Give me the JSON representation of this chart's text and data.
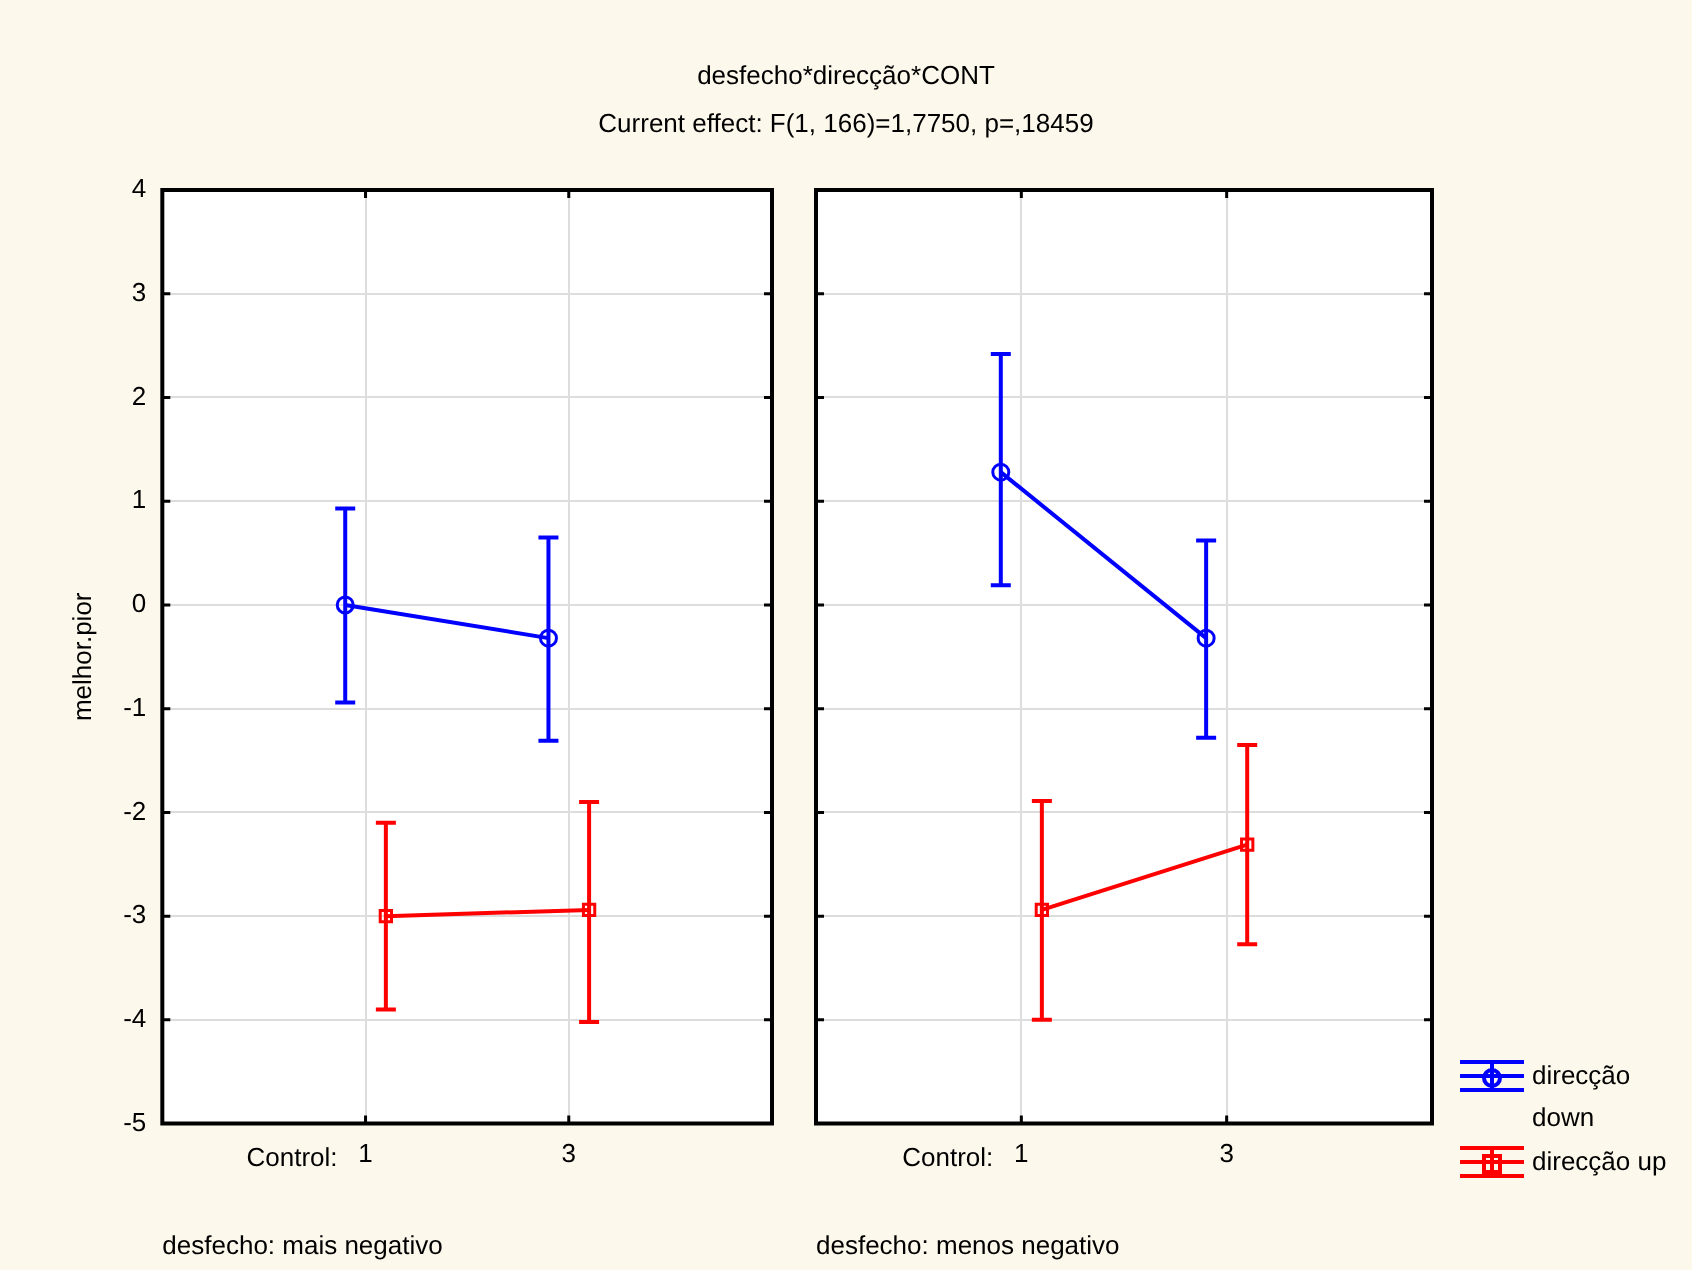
{
  "chart_data": [
    {
      "type": "line",
      "title": "desfecho*direcção*CONT",
      "subtitle": "Current effect: F(1, 166)=1,7750, p=,18459",
      "xlabel": "desfecho: mais negativo",
      "ylabel": "melhor.pior",
      "annotations": [
        "Control:"
      ],
      "categories": [
        "1",
        "3"
      ],
      "ylim": [
        -5,
        4
      ],
      "yticks": [
        -5,
        -4,
        -3,
        -2,
        -1,
        0,
        1,
        2,
        3,
        4
      ],
      "grid": true,
      "series": [
        {
          "color": "#0000ff",
          "marker": "circle",
          "values": [
            0,
            -0.32
          ],
          "errors": [
            [
              -0.94,
              0.93
            ],
            [
              -1.31,
              0.65
            ]
          ]
        },
        {
          "color": "#ff0000",
          "marker": "square",
          "values": [
            -3.0,
            -2.94
          ],
          "errors": [
            [
              -3.9,
              -2.1
            ],
            [
              -4.02,
              -1.9
            ]
          ]
        }
      ]
    },
    {
      "type": "line",
      "xlabel": "desfecho: menos negativo",
      "annotations": [
        "Control:"
      ],
      "categories": [
        "1",
        "3"
      ],
      "ylim": [
        -5,
        4
      ],
      "yticks": [
        -5,
        -4,
        -3,
        -2,
        -1,
        0,
        1,
        2,
        3,
        4
      ],
      "grid": true,
      "tick_labels": "x",
      "legend": "bottom right",
      "series": [
        {
          "name": "direcção down",
          "color": "#0000ff",
          "marker": "circle",
          "values": [
            1.28,
            -0.32
          ],
          "errors": [
            [
              0.19,
              2.42
            ],
            [
              -1.28,
              0.62
            ]
          ]
        },
        {
          "name": "direcção up",
          "color": "#ff0000",
          "marker": "square",
          "values": [
            -2.94,
            -2.31
          ],
          "errors": [
            [
              -4.0,
              -1.89
            ],
            [
              -3.27,
              -1.35
            ]
          ]
        }
      ]
    }
  ]
}
